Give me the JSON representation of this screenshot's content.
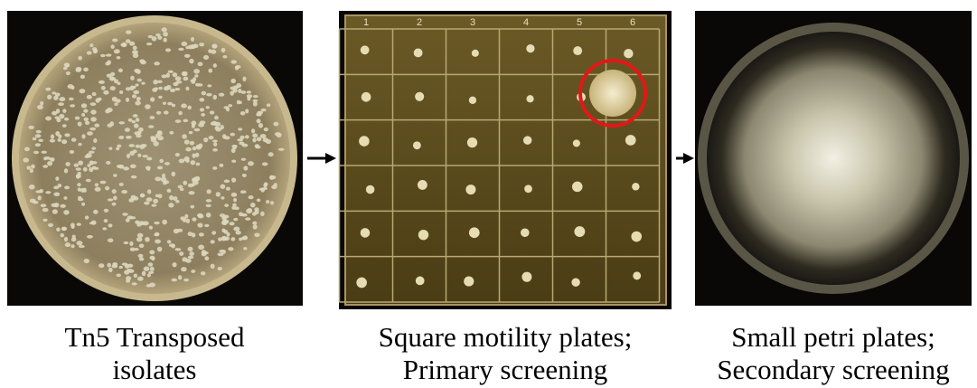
{
  "panels": [
    {
      "caption": [
        "Tn5 Transposed",
        "isolates"
      ]
    },
    {
      "caption": [
        "Square motility plates;",
        "Primary screening"
      ],
      "column_labels": [
        "1",
        "2",
        "3",
        "4",
        "5",
        "6"
      ]
    },
    {
      "caption": [
        "Small petri plates;",
        "Secondary screening"
      ]
    }
  ]
}
